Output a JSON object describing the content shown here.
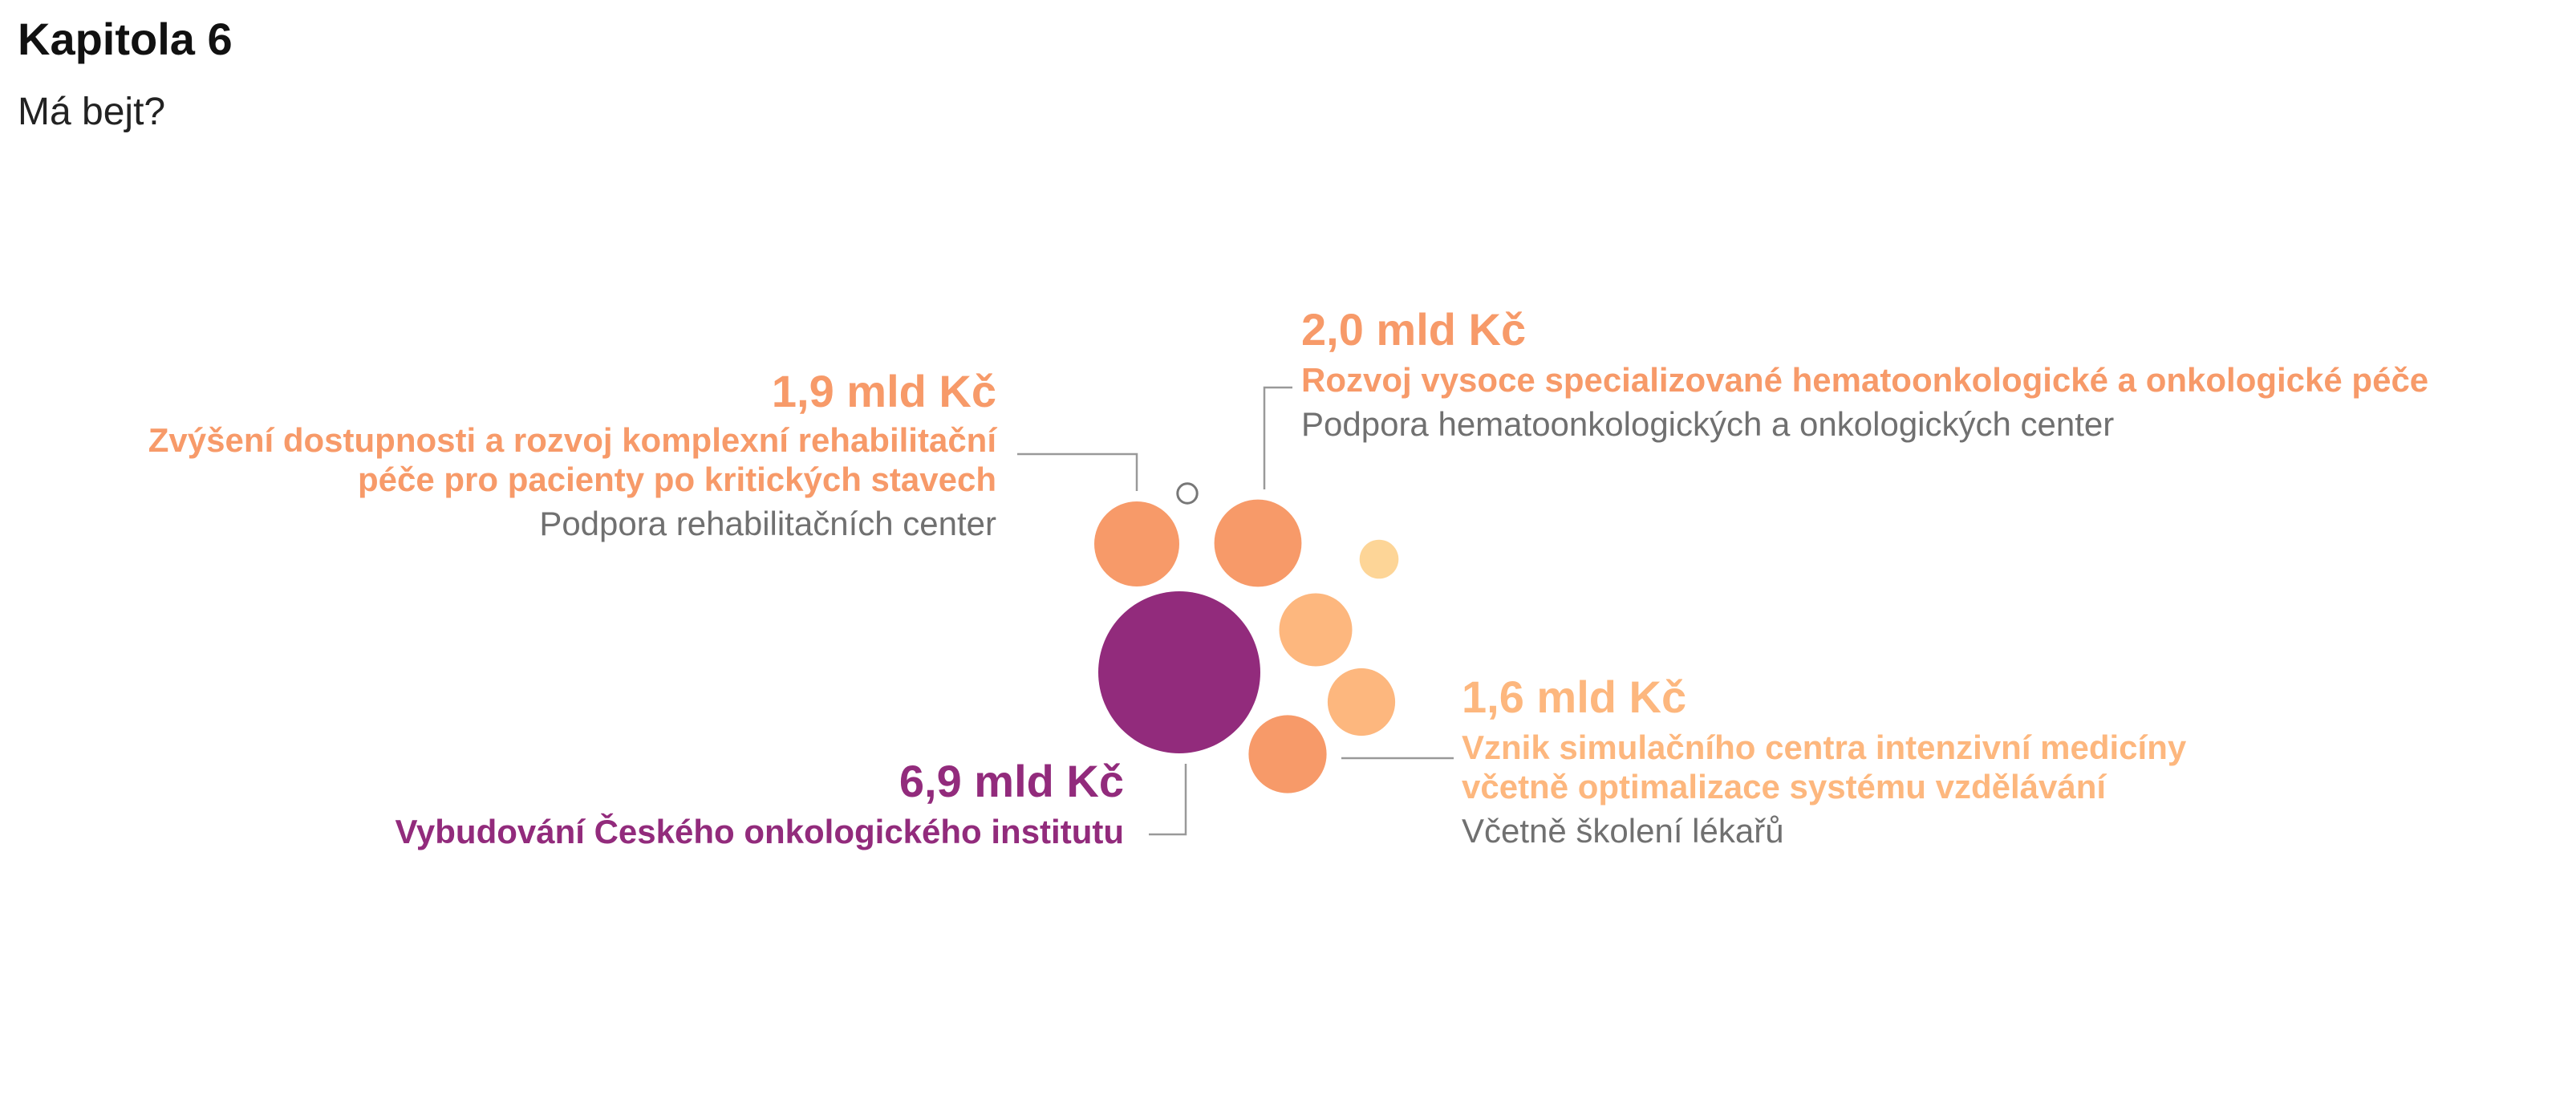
{
  "title": "Kapitola 6",
  "subtitle": "Má bejt?",
  "colors": {
    "purple": "#922b7c",
    "orange": "#f79a69",
    "orange_light": "#fdb77e",
    "yellow": "#fdd597",
    "text_gray": "#707070",
    "leader_gray": "#999999"
  },
  "chart_data": {
    "type": "bubble",
    "unit": "mld Kč",
    "bubbles": [
      {
        "value": 6.9,
        "color": "#922b7c",
        "labeled": true
      },
      {
        "value": 2.0,
        "color": "#f79a69",
        "labeled": true
      },
      {
        "value": 1.9,
        "color": "#f79a69",
        "labeled": true
      },
      {
        "value": 1.6,
        "color": "#f79a69",
        "labeled": true
      },
      {
        "value": 1.4,
        "color": "#fdb77e",
        "labeled": false
      },
      {
        "value": 1.2,
        "color": "#fdb77e",
        "labeled": false
      },
      {
        "value": 0.4,
        "color": "#fdd597",
        "labeled": false
      },
      {
        "value": 0.1,
        "color": "#ffffff",
        "labeled": false
      }
    ],
    "annotations": [
      {
        "value_text": "1,9 mld Kč",
        "heading_lines": [
          "Zvýšení dostupnosti a rozvoj komplexní rehabilitační",
          "péče pro pacienty po kritických stavech"
        ],
        "subtext": "Podpora rehabilitačních center",
        "color": "#f79a69"
      },
      {
        "value_text": "2,0 mld Kč",
        "heading_lines": [
          "Rozvoj vysoce specializované hematoonkologické a onkologické péče"
        ],
        "subtext": "Podpora hematoonkologických a onkologických center",
        "color": "#f79a69"
      },
      {
        "value_text": "1,6 mld Kč",
        "heading_lines": [
          "Vznik simulačního centra intenzivní medicíny",
          "včetně optimalizace systému vzdělávání"
        ],
        "subtext": "Včetně školení lékařů",
        "color": "#fdb77e"
      },
      {
        "value_text": "6,9 mld Kč",
        "heading_lines": [
          "Vybudování Českého onkologického institutu"
        ],
        "subtext": "",
        "color": "#922b7c"
      }
    ]
  }
}
